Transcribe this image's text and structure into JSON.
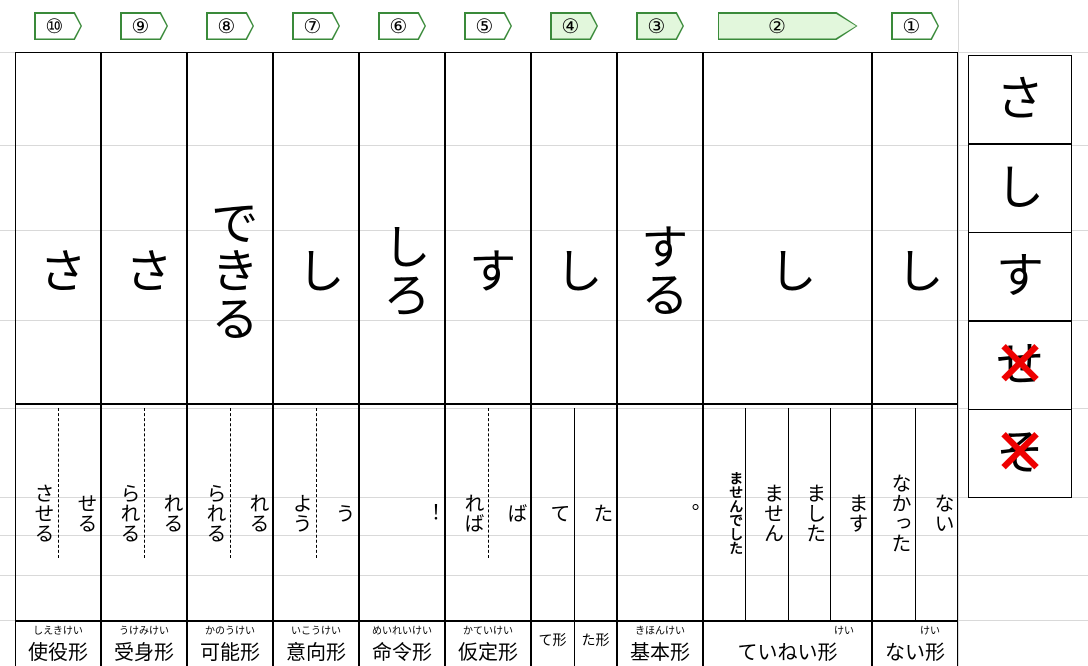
{
  "columns": [
    {
      "number": "⑩",
      "arrow_color": "#ffffff",
      "stem": "さ",
      "endings": [
        "させる",
        "せる"
      ],
      "names": [
        {
          "ruby": "しえきけい",
          "name": "使役形"
        }
      ]
    },
    {
      "number": "⑨",
      "arrow_color": "#ffffff",
      "stem": "さ",
      "endings": [
        "られる",
        "れる"
      ],
      "names": [
        {
          "ruby": "うけみけい",
          "name": "受身形"
        }
      ]
    },
    {
      "number": "⑧",
      "arrow_color": "#ffffff",
      "stem": "できる",
      "endings": [
        "られる",
        "れる"
      ],
      "names": [
        {
          "ruby": "かのうけい",
          "name": "可能形"
        }
      ]
    },
    {
      "number": "⑦",
      "arrow_color": "#ffffff",
      "stem": "し",
      "endings": [
        "よう",
        "う"
      ],
      "names": [
        {
          "ruby": "いこうけい",
          "name": "意向形"
        }
      ]
    },
    {
      "number": "⑥",
      "arrow_color": "#ffffff",
      "stem": "しろ",
      "endings": [
        "！"
      ],
      "names": [
        {
          "ruby": "めいれいけい",
          "name": "命令形"
        }
      ]
    },
    {
      "number": "⑤",
      "arrow_color": "#ffffff",
      "stem": "す",
      "endings": [
        "れば",
        "ば"
      ],
      "names": [
        {
          "ruby": "かていけい",
          "name": "仮定形"
        }
      ]
    },
    {
      "number": "④",
      "arrow_color": "#e2f7dc",
      "stem": "し",
      "endings": [
        "て",
        "た"
      ],
      "names": [
        {
          "name": "て形"
        },
        {
          "name": "た形"
        }
      ]
    },
    {
      "number": "③",
      "arrow_color": "#e2f7dc",
      "stem": "する",
      "endings": [
        "。"
      ],
      "names": [
        {
          "ruby": "きほんけい",
          "name": "基本形"
        }
      ]
    },
    {
      "number": "②",
      "arrow_color": "#e2f7dc",
      "stem": "し",
      "endings": [
        "ませんでした",
        "ません",
        "ました",
        "ます"
      ],
      "names": [
        {
          "ruby": "けい",
          "name": "ていねい形"
        }
      ]
    },
    {
      "number": "①",
      "arrow_color": "#ffffff",
      "stem": "し",
      "endings": [
        "なかった",
        "ない"
      ],
      "names": [
        {
          "ruby": "けい",
          "name": "ない形"
        }
      ]
    }
  ],
  "side_kana": [
    {
      "text": "さ",
      "crossed": false
    },
    {
      "text": "し",
      "crossed": false
    },
    {
      "text": "す",
      "crossed": false
    },
    {
      "text": "せ",
      "crossed": true
    },
    {
      "text": "そ",
      "crossed": true
    }
  ]
}
